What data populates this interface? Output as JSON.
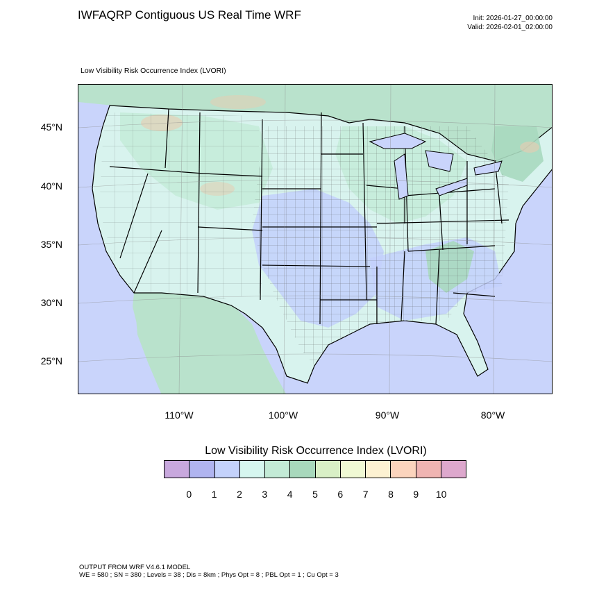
{
  "header": {
    "title": "IWFAQRP Contiguous US Real Time WRF",
    "init": "Init: 2026-01-27_00:00:00",
    "valid": "Valid: 2026-02-01_02:00:00"
  },
  "map": {
    "subtitle": "Low Visibility Risk Occurrence Index   (LVORI)",
    "lat_labels": [
      "45°N",
      "40°N",
      "35°N",
      "30°N",
      "25°N"
    ],
    "lon_labels": [
      "110°W",
      "100°W",
      "90°W",
      "80°W"
    ],
    "colors": {
      "ocean": "#c9d4fb",
      "land_default": "#d8f3ee",
      "land_low": "#c3d0fb",
      "land_mid": "#c5ecd9",
      "land_high": "#a8d9bf",
      "mountain": "#e9ccb0",
      "border": "#000000"
    }
  },
  "colorbar": {
    "title": "Low Visibility Risk Occurrence Index  (LVORI)",
    "labels": [
      "0",
      "1",
      "2",
      "3",
      "4",
      "5",
      "6",
      "7",
      "8",
      "9",
      "10"
    ],
    "colors": [
      "#c8a8dd",
      "#b0b4ef",
      "#c4d2fb",
      "#d6f6ef",
      "#c3ead6",
      "#a8d8bc",
      "#d9efc6",
      "#f0f9d4",
      "#fdf2d2",
      "#fbd4bd",
      "#efb4b2",
      "#dda8cd"
    ]
  },
  "footer": {
    "line1": "OUTPUT FROM WRF V4.6.1 MODEL",
    "line2": "WE = 580 ; SN = 380 ; Levels = 38 ; Dis = 8km ; Phys Opt = 8 ; PBL Opt = 1 ; Cu Opt = 3"
  }
}
